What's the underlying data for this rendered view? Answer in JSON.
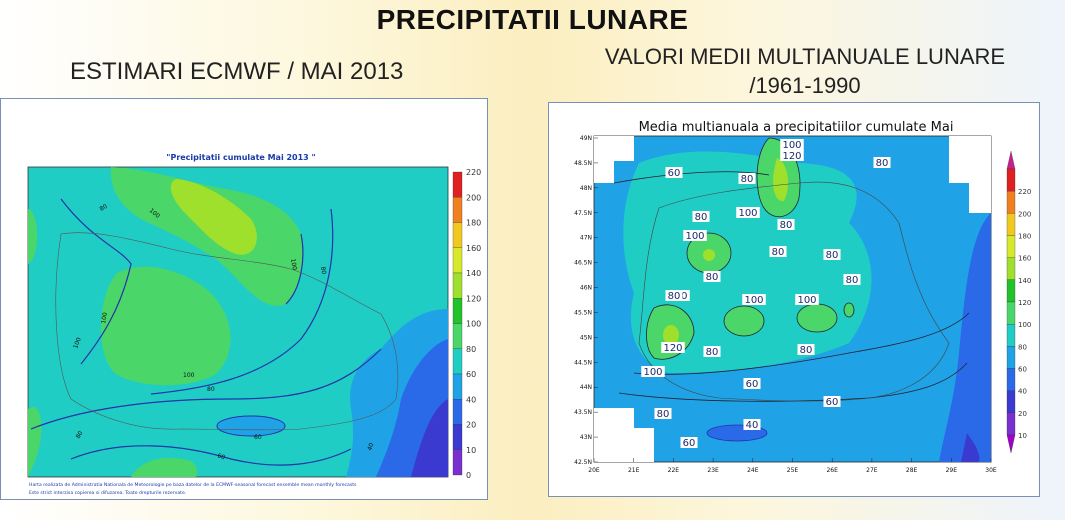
{
  "header": {
    "title": "PRECIPITATII LUNARE",
    "left_subtitle": "ESTIMARI ECMWF / MAI 2013",
    "right_subtitle_line1": "VALORI MEDII MULTIANUALE LUNARE",
    "right_subtitle_line2": "/1961-1990"
  },
  "left_map": {
    "title": "\"Precipitatii cumulate Mai 2013 \"",
    "legend_levels": [
      "220",
      "200",
      "180",
      "160",
      "140",
      "120",
      "100",
      "80",
      "60",
      "40",
      "20",
      "10",
      "0"
    ],
    "contour_labels": [
      "80",
      "100",
      "100",
      "80",
      "100",
      "100",
      "100",
      "80",
      "60",
      "80",
      "60",
      "40"
    ],
    "footer_line1": "Harta realizata de Administratia Nationala de Meteorologie pe baza datelor de la ECMWF-seasonal forecast ensemble mean monthly forecasts",
    "footer_line2": "Este strict interzisa copierea si difuzarea. Toate drepturile rezervate."
  },
  "right_map": {
    "title": "Media multianuala a precipitatiilor cumulate Mai",
    "legend_levels": [
      "220",
      "200",
      "180",
      "160",
      "140",
      "120",
      "100",
      "80",
      "60",
      "40",
      "20",
      "10"
    ],
    "lat_ticks": [
      "49N",
      "48.5N",
      "48N",
      "47.5N",
      "47N",
      "46.5N",
      "46N",
      "45.5N",
      "45N",
      "44.5N",
      "44N",
      "43.5N",
      "43N",
      "42.5N"
    ],
    "lon_ticks": [
      "20E",
      "21E",
      "22E",
      "23E",
      "24E",
      "25E",
      "26E",
      "27E",
      "28E",
      "29E",
      "30E"
    ],
    "contour_labels": [
      "100",
      "120",
      "60",
      "80",
      "80",
      "80",
      "100",
      "80",
      "100",
      "80",
      "80",
      "80",
      "80",
      "100",
      "100",
      "100",
      "80",
      "120",
      "80",
      "80",
      "100",
      "60",
      "60",
      "80",
      "40",
      "60"
    ]
  },
  "colors": {
    "c0": "#8a2be2",
    "c10": "#7a2fd0",
    "c20": "#3a3ad0",
    "c40": "#2a6ae8",
    "c60": "#1fa3e6",
    "c80": "#20cdc4",
    "c100": "#4bd66a",
    "c120": "#22c22a",
    "c140": "#9ee02c",
    "c160": "#d8e82a",
    "c180": "#f0c820",
    "c200": "#f08020",
    "c220": "#e02020",
    "c_top": "#c8208a"
  }
}
